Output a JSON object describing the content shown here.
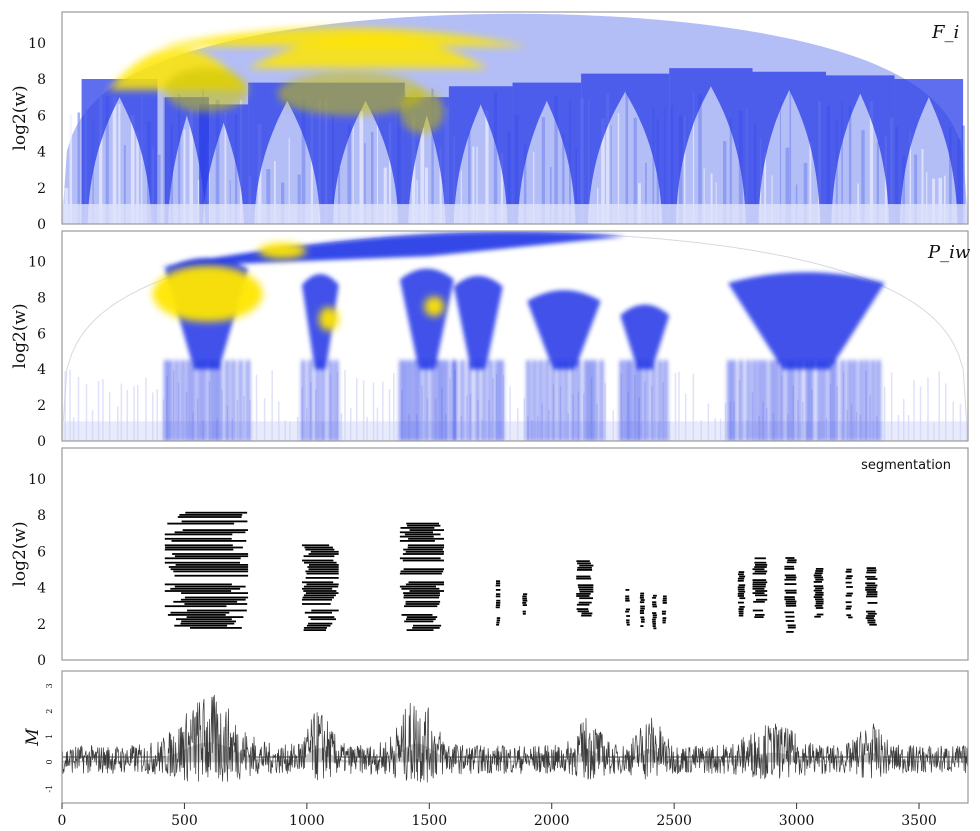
{
  "chart_data": [
    {
      "type": "heatmap",
      "title": "F_i",
      "ylabel": "log2(w)",
      "ylim": [
        0,
        11.7
      ],
      "yticks": [
        "0",
        "2",
        "4",
        "6",
        "8",
        "10"
      ],
      "xlim": [
        0,
        3700
      ],
      "colormap": [
        "#ffffff",
        "#1e33e6",
        "#ffee00"
      ]
    },
    {
      "type": "heatmap",
      "title": "P_iw",
      "ylabel": "log2(w)",
      "ylim": [
        0,
        11.7
      ],
      "yticks": [
        "0",
        "2",
        "4",
        "6",
        "8",
        "10"
      ],
      "xlim": [
        0,
        3700
      ],
      "colormap": [
        "#ffffff",
        "#1e33e6",
        "#ffee00"
      ]
    },
    {
      "type": "scatter",
      "title": "segmentation",
      "ylabel": "log2(w)",
      "ylim": [
        0,
        11.7
      ],
      "yticks": [
        "0",
        "2",
        "4",
        "6",
        "8",
        "10"
      ],
      "xlim": [
        0,
        3700
      ],
      "segments": [
        {
          "x": [
            420,
            760
          ],
          "y": [
            1.7,
            8.2
          ]
        },
        {
          "x": [
            980,
            1130
          ],
          "y": [
            1.7,
            6.5
          ]
        },
        {
          "x": [
            1380,
            1560
          ],
          "y": [
            1.7,
            7.6
          ]
        },
        {
          "x": [
            1770,
            1790
          ],
          "y": [
            2.0,
            4.8
          ]
        },
        {
          "x": [
            1880,
            1900
          ],
          "y": [
            2.6,
            3.9
          ]
        },
        {
          "x": [
            2100,
            2170
          ],
          "y": [
            2.5,
            5.7
          ]
        },
        {
          "x": [
            2300,
            2320
          ],
          "y": [
            2.0,
            4.0
          ]
        },
        {
          "x": [
            2360,
            2380
          ],
          "y": [
            1.8,
            3.8
          ]
        },
        {
          "x": [
            2410,
            2430
          ],
          "y": [
            1.8,
            3.7
          ]
        },
        {
          "x": [
            2450,
            2470
          ],
          "y": [
            2.0,
            3.6
          ]
        },
        {
          "x": [
            2760,
            2790
          ],
          "y": [
            2.5,
            5.0
          ]
        },
        {
          "x": [
            2820,
            2880
          ],
          "y": [
            2.3,
            5.8
          ]
        },
        {
          "x": [
            2950,
            3000
          ],
          "y": [
            1.6,
            5.7
          ]
        },
        {
          "x": [
            3070,
            3110
          ],
          "y": [
            2.2,
            5.2
          ]
        },
        {
          "x": [
            3200,
            3230
          ],
          "y": [
            2.4,
            5.1
          ]
        },
        {
          "x": [
            3280,
            3330
          ],
          "y": [
            2.0,
            5.2
          ]
        }
      ]
    },
    {
      "type": "line",
      "ylabel": "M",
      "yticks": [
        "-1",
        "0",
        "1",
        "2",
        "3"
      ],
      "ylim": [
        -1.6,
        3.6
      ],
      "xlim": [
        0,
        3700
      ],
      "xticks": [
        "0",
        "500",
        "1000",
        "1500",
        "2000",
        "2500",
        "3000",
        "3500"
      ]
    }
  ]
}
